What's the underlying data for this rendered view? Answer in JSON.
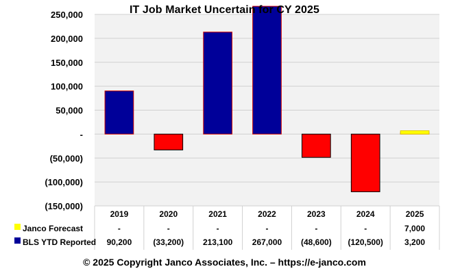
{
  "chart_data": {
    "type": "bar",
    "title": "IT Job Market Uncertain for CY 2025",
    "categories": [
      "2019",
      "2020",
      "2021",
      "2022",
      "2023",
      "2024",
      "2025"
    ],
    "ylim": [
      -150000,
      250000
    ],
    "yticks": [
      250000,
      200000,
      150000,
      100000,
      50000,
      0,
      -50000,
      -100000,
      -150000
    ],
    "ytick_labels": [
      "250,000",
      "200,000",
      "150,000",
      "100,000",
      "50,000",
      "-",
      "(50,000)",
      "(100,000)",
      "(150,000)"
    ],
    "grid": true,
    "series": [
      {
        "name": "Janco Forecast",
        "color": "#ffff00",
        "values": [
          null,
          null,
          null,
          null,
          null,
          null,
          7000
        ],
        "table_labels": [
          "-",
          "-",
          "-",
          "-",
          "-",
          "-",
          "7,000"
        ]
      },
      {
        "name": "BLS YTD Reported",
        "color": "#000099",
        "negative_color": "#ff0000",
        "values": [
          90200,
          -33200,
          213100,
          267000,
          -48600,
          -120500,
          3200
        ],
        "table_labels": [
          "90,200",
          "(33,200)",
          "213,100",
          "267,000",
          "(48,600)",
          "(120,500)",
          "3,200"
        ]
      }
    ]
  },
  "footer": "© 2025 Copyright Janco Associates, Inc. – https://e-janco.com"
}
